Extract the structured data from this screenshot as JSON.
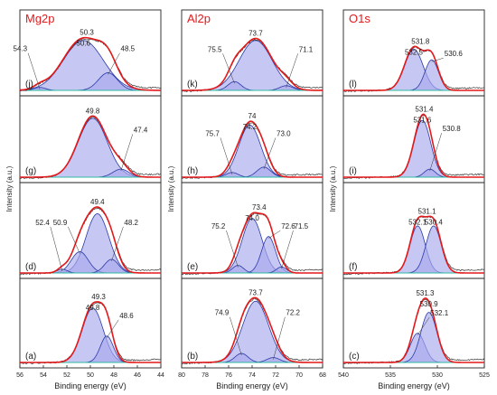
{
  "colors": {
    "envelope": "#e31a1c",
    "component": "#2a3aa8",
    "fill": "#a9a9ec",
    "baseline": "#2fb8a0",
    "raw": "#333333",
    "title": "#e31a1c"
  },
  "chart_data": [
    {
      "type": "line",
      "title": "Mg2p",
      "xlabel": "Binding energy (eV)",
      "ylabel": "Intensity (a.u.)",
      "xlim": [
        56,
        44
      ],
      "xticks": [
        56,
        54,
        52,
        50,
        48,
        46,
        44
      ],
      "x_reversed": true,
      "panels": [
        {
          "label": "(j)",
          "envelope_peak": 50.3,
          "components": [
            {
              "center": 50.6,
              "height": 0.85,
              "fwhm": 4.0,
              "label": "50.6"
            },
            {
              "center": 48.5,
              "height": 0.3,
              "fwhm": 1.9,
              "label": "48.5"
            },
            {
              "center": 54.3,
              "height": 0.05,
              "fwhm": 1.2,
              "label": "54.3"
            }
          ]
        },
        {
          "label": "(g)",
          "envelope_peak": null,
          "components": [
            {
              "center": 49.8,
              "height": 0.88,
              "fwhm": 2.9,
              "label": "49.8"
            },
            {
              "center": 47.4,
              "height": 0.12,
              "fwhm": 1.6,
              "label": "47.4"
            }
          ]
        },
        {
          "label": "(d)",
          "envelope_peak": 49.4,
          "components": [
            {
              "center": 49.4,
              "height": 0.78,
              "fwhm": 2.3,
              "label": "49.4"
            },
            {
              "center": 50.9,
              "height": 0.28,
              "fwhm": 1.7,
              "label": "50.9"
            },
            {
              "center": 48.2,
              "height": 0.18,
              "fwhm": 1.4,
              "label": "48.2"
            },
            {
              "center": 52.4,
              "height": 0.05,
              "fwhm": 1.0,
              "label": "52.4"
            }
          ]
        },
        {
          "label": "(a)",
          "envelope_peak": 49.3,
          "components": [
            {
              "center": 49.8,
              "height": 0.78,
              "fwhm": 2.1,
              "label": "49.8"
            },
            {
              "center": 48.6,
              "height": 0.38,
              "fwhm": 1.3,
              "label": "48.6"
            }
          ]
        }
      ]
    },
    {
      "type": "line",
      "title": "Al2p",
      "xlabel": "Binding energy (eV)",
      "ylabel": "Intensity (a.u.)",
      "xlim": [
        80,
        68
      ],
      "xticks": [
        80,
        78,
        76,
        74,
        72,
        70,
        68
      ],
      "x_reversed": true,
      "panels": [
        {
          "label": "(k)",
          "envelope_peak": null,
          "components": [
            {
              "center": 73.7,
              "height": 0.85,
              "fwhm": 3.3,
              "label": "73.7"
            },
            {
              "center": 75.5,
              "height": 0.15,
              "fwhm": 1.3,
              "label": "75.5"
            },
            {
              "center": 71.1,
              "height": 0.08,
              "fwhm": 1.3,
              "label": "71.1"
            }
          ]
        },
        {
          "label": "(h)",
          "envelope_peak": 74.0,
          "components": [
            {
              "center": 74.2,
              "height": 0.78,
              "fwhm": 2.2,
              "label": "74.2"
            },
            {
              "center": 73.0,
              "height": 0.15,
              "fwhm": 1.4,
              "label": "73.0"
            },
            {
              "center": 75.7,
              "height": 0.07,
              "fwhm": 1.2,
              "label": "75.7"
            }
          ]
        },
        {
          "label": "(e)",
          "envelope_peak": 73.4,
          "components": [
            {
              "center": 74.0,
              "height": 0.72,
              "fwhm": 2.0,
              "label": "74.0"
            },
            {
              "center": 72.6,
              "height": 0.48,
              "fwhm": 1.4,
              "label": "72.6"
            },
            {
              "center": 75.2,
              "height": 0.1,
              "fwhm": 1.1,
              "label": "75.2"
            },
            {
              "center": 71.5,
              "height": 0.08,
              "fwhm": 1.0,
              "label": "71.5"
            }
          ]
        },
        {
          "label": "(b)",
          "envelope_peak": null,
          "components": [
            {
              "center": 73.7,
              "height": 0.88,
              "fwhm": 2.6,
              "label": "73.7"
            },
            {
              "center": 74.9,
              "height": 0.13,
              "fwhm": 1.3,
              "label": "74.9"
            },
            {
              "center": 72.2,
              "height": 0.07,
              "fwhm": 1.3,
              "label": "72.2"
            }
          ]
        }
      ]
    },
    {
      "type": "line",
      "title": "O1s",
      "xlabel": "Binding energy (eV)",
      "ylabel": "Intensity (a.u.)",
      "xlim": [
        540,
        525
      ],
      "xticks": [
        540,
        535,
        530,
        525
      ],
      "x_reversed": true,
      "panels": [
        {
          "label": "(l)",
          "envelope_peak": 531.8,
          "components": [
            {
              "center": 532.5,
              "height": 0.7,
              "fwhm": 2.3,
              "label": "532.5"
            },
            {
              "center": 530.6,
              "height": 0.52,
              "fwhm": 1.7,
              "label": "530.6"
            }
          ]
        },
        {
          "label": "(i)",
          "envelope_peak": 531.4,
          "components": [
            {
              "center": 531.6,
              "height": 0.85,
              "fwhm": 2.1,
              "label": "531.6"
            },
            {
              "center": 530.8,
              "height": 0.12,
              "fwhm": 1.4,
              "label": "530.8"
            }
          ]
        },
        {
          "label": "(f)",
          "envelope_peak": 531.1,
          "components": [
            {
              "center": 532.1,
              "height": 0.62,
              "fwhm": 1.9,
              "label": "532.1"
            },
            {
              "center": 530.4,
              "height": 0.62,
              "fwhm": 1.9,
              "label": "530.4"
            }
          ]
        },
        {
          "label": "(c)",
          "envelope_peak": 531.3,
          "components": [
            {
              "center": 532.1,
              "height": 0.42,
              "fwhm": 1.8,
              "label": "532.1"
            },
            {
              "center": 530.9,
              "height": 0.72,
              "fwhm": 2.0,
              "label": "530.9"
            }
          ]
        }
      ]
    }
  ]
}
